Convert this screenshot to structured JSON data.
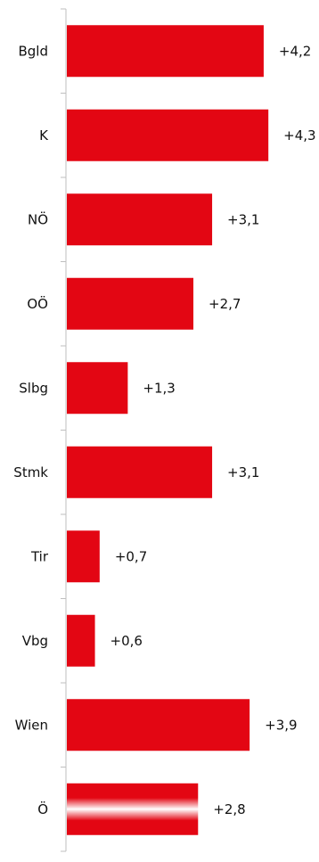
{
  "chart_data": {
    "type": "bar",
    "orientation": "horizontal",
    "title": "",
    "xlabel": "",
    "ylabel": "",
    "categories": [
      "Bgld",
      "K",
      "NÖ",
      "OÖ",
      "Slbg",
      "Stmk",
      "Tir",
      "Vbg",
      "Wien",
      "Ö"
    ],
    "values": [
      4.2,
      4.3,
      3.1,
      2.7,
      1.3,
      3.1,
      0.7,
      0.6,
      3.9,
      2.8
    ],
    "value_labels": [
      "+4,2",
      "+4,3",
      "+3,1",
      "+2,7",
      "+1,3",
      "+3,1",
      "+0,7",
      "+0,6",
      "+3,9",
      "+2,8"
    ],
    "xlim": [
      0,
      5
    ],
    "grid": false,
    "legend": "none",
    "colors": {
      "bar": "#e30613",
      "axis": "#bfbfbf",
      "text": "#111111",
      "highlight_stripe": "#ffffff"
    },
    "highlight_category": "Ö"
  }
}
